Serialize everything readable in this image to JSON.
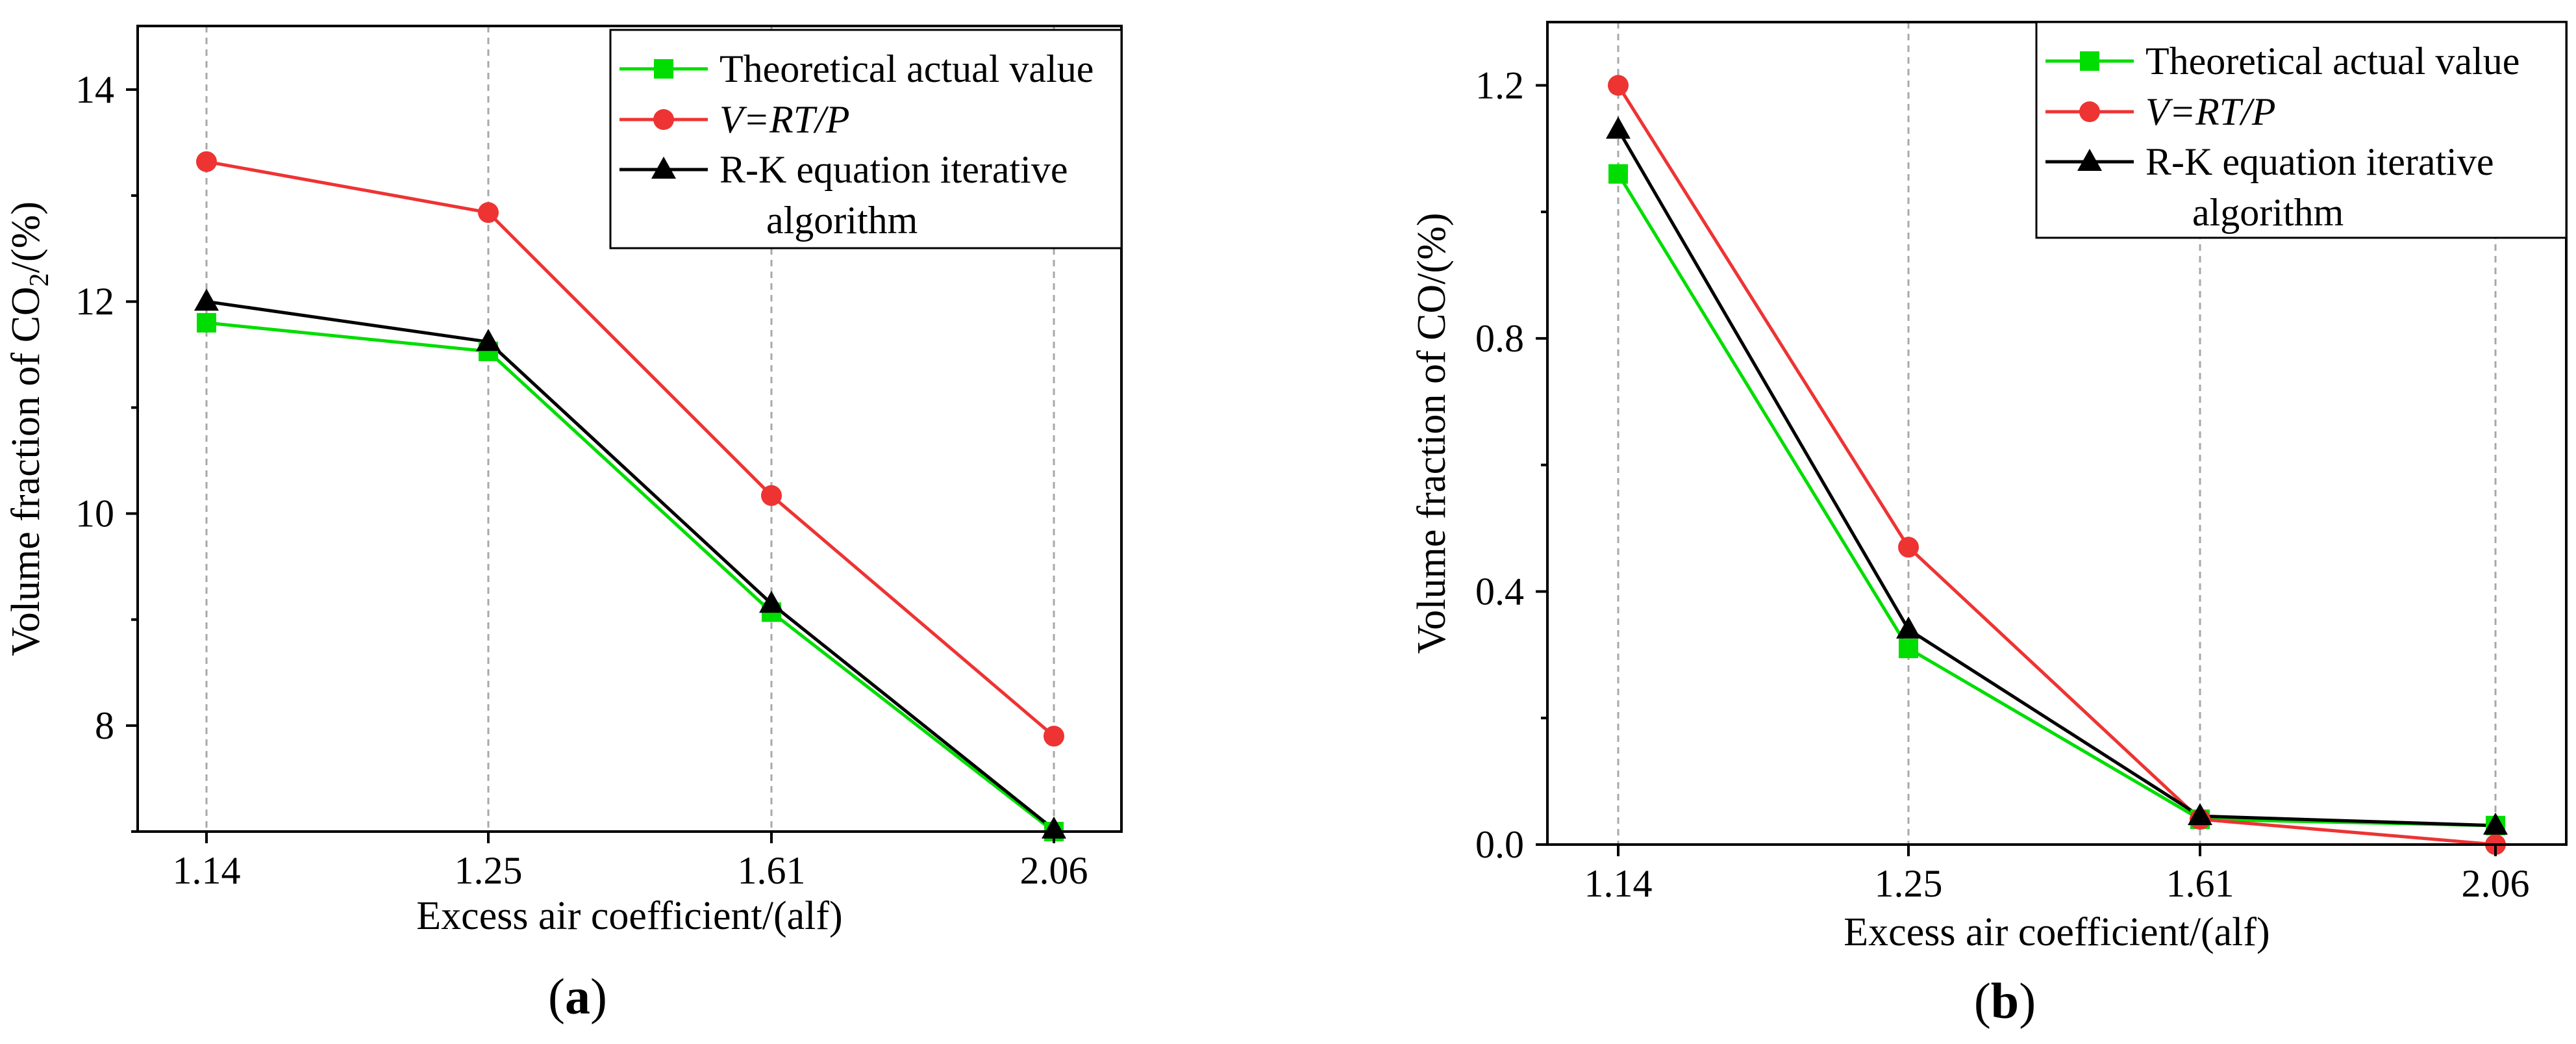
{
  "chart_data": [
    {
      "type": "line",
      "panel_label": "(a)",
      "panel_letter": "a",
      "xlabel": "Excess air coefficient/(alf)",
      "ylabel_prefix": "Volume fraction of CO",
      "ylabel_subscript": "2",
      "ylabel_suffix": "/(%)",
      "categories": [
        "1.14",
        "1.25",
        "1.61",
        "2.06"
      ],
      "ylim": [
        7,
        14.6
      ],
      "yticks": [
        8,
        10,
        12,
        14
      ],
      "ytick_labels": [
        "8",
        "10",
        "12",
        "14"
      ],
      "legend_position": "top-right",
      "grid": "vertical dashed",
      "series": [
        {
          "name": "Theoretical actual value",
          "color": "#00dd00",
          "marker": "square",
          "values": [
            11.8,
            11.53,
            9.07,
            7.0
          ]
        },
        {
          "name": "V=RT/P",
          "color": "#ee3333",
          "marker": "circle",
          "values": [
            13.32,
            12.84,
            10.17,
            7.9
          ]
        },
        {
          "name": "R-K equation iterative algorithm",
          "name_line1": "R-K equation iterative",
          "name_line2": "algorithm",
          "color": "#000000",
          "marker": "triangle",
          "values": [
            12.0,
            11.62,
            9.15,
            7.02
          ]
        }
      ]
    },
    {
      "type": "line",
      "panel_label": "(b)",
      "panel_letter": "b",
      "xlabel": "Excess air coefficient/(alf)",
      "ylabel_prefix": "Volume fraction of CO/(%)",
      "ylabel_subscript": "",
      "ylabel_suffix": "",
      "categories": [
        "1.14",
        "1.25",
        "1.61",
        "2.06"
      ],
      "ylim": [
        0,
        1.3
      ],
      "yticks": [
        0,
        0.4,
        0.8,
        1.2
      ],
      "ytick_labels": [
        "0.0",
        "0.4",
        "0.8",
        "1.2"
      ],
      "legend_position": "top-right",
      "grid": "vertical dashed",
      "series": [
        {
          "name": "Theoretical actual value",
          "color": "#00dd00",
          "marker": "square",
          "values": [
            1.06,
            0.31,
            0.04,
            0.03
          ]
        },
        {
          "name": "V=RT/P",
          "color": "#ee3333",
          "marker": "circle",
          "values": [
            1.2,
            0.47,
            0.04,
            0.0
          ]
        },
        {
          "name": "R-K equation iterative algorithm",
          "name_line1": "R-K equation iterative",
          "name_line2": "algorithm",
          "color": "#000000",
          "marker": "triangle",
          "values": [
            1.13,
            0.34,
            0.045,
            0.03
          ]
        }
      ]
    }
  ]
}
